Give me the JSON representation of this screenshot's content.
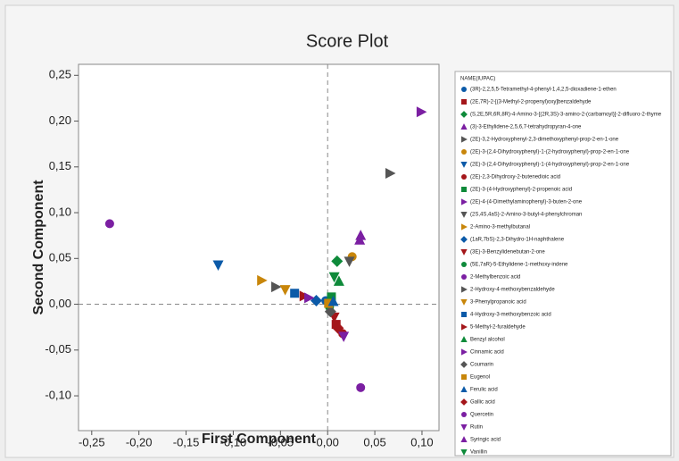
{
  "chart_data": {
    "type": "scatter",
    "title": "Score Plot",
    "x_label": "First Component",
    "y_label": "Second Component",
    "legend_title": "NAME(IUPAC)",
    "xlim": [
      -0.264,
      0.118
    ],
    "ylim": [
      -0.138,
      0.262
    ],
    "xticks": [
      {
        "value": -0.25,
        "label": "-0,25"
      },
      {
        "value": -0.2,
        "label": "-0,20"
      },
      {
        "value": -0.15,
        "label": "-0,15"
      },
      {
        "value": -0.1,
        "label": "-0,10"
      },
      {
        "value": -0.05,
        "label": "-0,05"
      },
      {
        "value": 0,
        "label": "0,00"
      },
      {
        "value": 0.05,
        "label": "0,05"
      },
      {
        "value": 0.1,
        "label": "0,10"
      }
    ],
    "yticks": [
      {
        "value": -0.1,
        "label": "-0,10"
      },
      {
        "value": -0.05,
        "label": "-0,05"
      },
      {
        "value": 0,
        "label": "0,00"
      },
      {
        "value": 0.05,
        "label": "0,05"
      },
      {
        "value": 0.1,
        "label": "0,10"
      },
      {
        "value": 0.15,
        "label": "0,15"
      },
      {
        "value": 0.2,
        "label": "0,20"
      },
      {
        "value": 0.25,
        "label": "0,25"
      }
    ],
    "reference_lines": {
      "x": 0,
      "y": 0
    },
    "series": [
      {
        "name": "(3R)-2,2,5,5-Tetramethyl-4-phenyl-1,4,2,5-dioxadiene-1-ethen",
        "color": "#0b5aa8",
        "marker": "circle",
        "x": [
          -0.002
        ],
        "values": [
          0.004
        ]
      },
      {
        "name": "(2E,7R)-2-[(3-Methyl-2-propenyl)oxy]benzaldehyde",
        "color": "#a4161a",
        "marker": "square",
        "x": [
          0.009
        ],
        "values": [
          -0.022
        ]
      },
      {
        "name": "(S,2E,5R,6R,8R)-4-Amino-3-[(2R,3S)-3-amino-2-(carbamoyl)]-2-difluoro-2-thyme",
        "color": "#0e8a3a",
        "marker": "diamond",
        "x": [
          0.01
        ],
        "values": [
          0.047
        ]
      },
      {
        "name": "(3)-3-Ethylidene-2,5,6,7-tetrahydropyran-4-one",
        "color": "#7b1fa2",
        "marker": "tri-up",
        "x": [
          0.035
        ],
        "values": [
          0.075
        ]
      },
      {
        "name": "(2E)-3,2-Hydroxyphenyl-2,3-dimethoxyphenyl-prop-2-en-1-one",
        "color": "#555555",
        "marker": "tri-right",
        "x": [
          0.066
        ],
        "values": [
          0.143
        ]
      },
      {
        "name": "(2E)-3-(2,4-Dihydroxyphenyl)-1-(2-hydroxyphenyl)-prop-2-en-1-one",
        "color": "#c8860a",
        "marker": "circle",
        "x": [
          0.026
        ],
        "values": [
          0.052
        ]
      },
      {
        "name": "(2E)-3-(2,4-Dihydroxyphenyl)-1-(4-hydroxyphenyl)-prop-2-en-1-one",
        "color": "#0b5aa8",
        "marker": "tri-down",
        "x": [
          -0.116
        ],
        "values": [
          0.043
        ]
      },
      {
        "name": "(2E)-2,3-Dihydroxy-2-butenedioic acid",
        "color": "#a4161a",
        "marker": "circle",
        "x": [
          0.016
        ],
        "values": [
          -0.032
        ]
      },
      {
        "name": "(2E)-3-(4-Hydroxyphenyl)-2-propenoic acid",
        "color": "#0e8a3a",
        "marker": "square",
        "x": [
          0.004
        ],
        "values": [
          0.008
        ]
      },
      {
        "name": "(2E)-4-(4-Dimethylaminophenyl)-3-buten-2-one",
        "color": "#7b1fa2",
        "marker": "tri-right",
        "x": [
          0.099
        ],
        "values": [
          0.21
        ]
      },
      {
        "name": "(2S,4S,4aS)-2-Amino-3-butyl-4-phenylchroman",
        "color": "#555555",
        "marker": "tri-down",
        "x": [
          0.023
        ],
        "values": [
          0.047
        ]
      },
      {
        "name": "2-Amino-3-methylbutanal",
        "color": "#c8860a",
        "marker": "tri-right",
        "x": [
          -0.07
        ],
        "values": [
          0.026
        ]
      },
      {
        "name": "(1aR,7bS)-2,3-Dihydro-1H-naphthalene",
        "color": "#0b5aa8",
        "marker": "diamond",
        "x": [
          -0.012
        ],
        "values": [
          0.004
        ]
      },
      {
        "name": "(3E)-3-Benzylidenebutan-2-one",
        "color": "#a4161a",
        "marker": "tri-down",
        "x": [
          0.007
        ],
        "values": [
          -0.014
        ]
      },
      {
        "name": "(5E,7aR)-5-Ethylidene-1-methoxy-indene",
        "color": "#0e8a3a",
        "marker": "circle",
        "x": [
          0.002
        ],
        "values": [
          -0.003
        ]
      },
      {
        "name": "2-Methylbenzoic acid",
        "color": "#7b1fa2",
        "marker": "circle",
        "x": [
          -0.231
        ],
        "values": [
          0.088
        ]
      },
      {
        "name": "2-Hydroxy-4-methoxybenzaldehyde",
        "color": "#555555",
        "marker": "tri-right",
        "x": [
          -0.055
        ],
        "values": [
          0.019
        ]
      },
      {
        "name": "3-Phenylpropanoic acid",
        "color": "#c8860a",
        "marker": "tri-down",
        "x": [
          -0.045
        ],
        "values": [
          0.016
        ]
      },
      {
        "name": "4-Hydroxy-3-methoxybenzoic acid",
        "color": "#0b5aa8",
        "marker": "square",
        "x": [
          -0.035
        ],
        "values": [
          0.012
        ]
      },
      {
        "name": "5-Methyl-2-furaldehyde",
        "color": "#a4161a",
        "marker": "tri-right",
        "x": [
          -0.025
        ],
        "values": [
          0.009
        ]
      },
      {
        "name": "Benzyl alcohol",
        "color": "#0e8a3a",
        "marker": "tri-up",
        "x": [
          0.012
        ],
        "values": [
          0.025
        ]
      },
      {
        "name": "Cinnamic acid",
        "color": "#7b1fa2",
        "marker": "tri-right",
        "x": [
          -0.02
        ],
        "values": [
          0.007
        ]
      },
      {
        "name": "Coumarin",
        "color": "#555555",
        "marker": "diamond",
        "x": [
          0.003
        ],
        "values": [
          -0.008
        ]
      },
      {
        "name": "Eugenol",
        "color": "#c8860a",
        "marker": "square",
        "x": [
          0.001
        ],
        "values": [
          0.001
        ]
      },
      {
        "name": "Ferulic acid",
        "color": "#0b5aa8",
        "marker": "tri-up",
        "x": [
          0.006
        ],
        "values": [
          0.003
        ]
      },
      {
        "name": "Gallic acid",
        "color": "#a4161a",
        "marker": "diamond",
        "x": [
          0.011
        ],
        "values": [
          -0.026
        ]
      },
      {
        "name": "Quercetin",
        "color": "#7b1fa2",
        "marker": "circle",
        "x": [
          0.035
        ],
        "values": [
          -0.091
        ]
      },
      {
        "name": "Rutin",
        "color": "#7b1fa2",
        "marker": "tri-down",
        "x": [
          0.017
        ],
        "values": [
          -0.035
        ]
      },
      {
        "name": "Syringic acid",
        "color": "#7b1fa2",
        "marker": "tri-up",
        "x": [
          0.034
        ],
        "values": [
          0.07
        ]
      },
      {
        "name": "Vanillin",
        "color": "#0e8a3a",
        "marker": "tri-down",
        "x": [
          0.007
        ],
        "values": [
          0.03
        ]
      }
    ]
  }
}
